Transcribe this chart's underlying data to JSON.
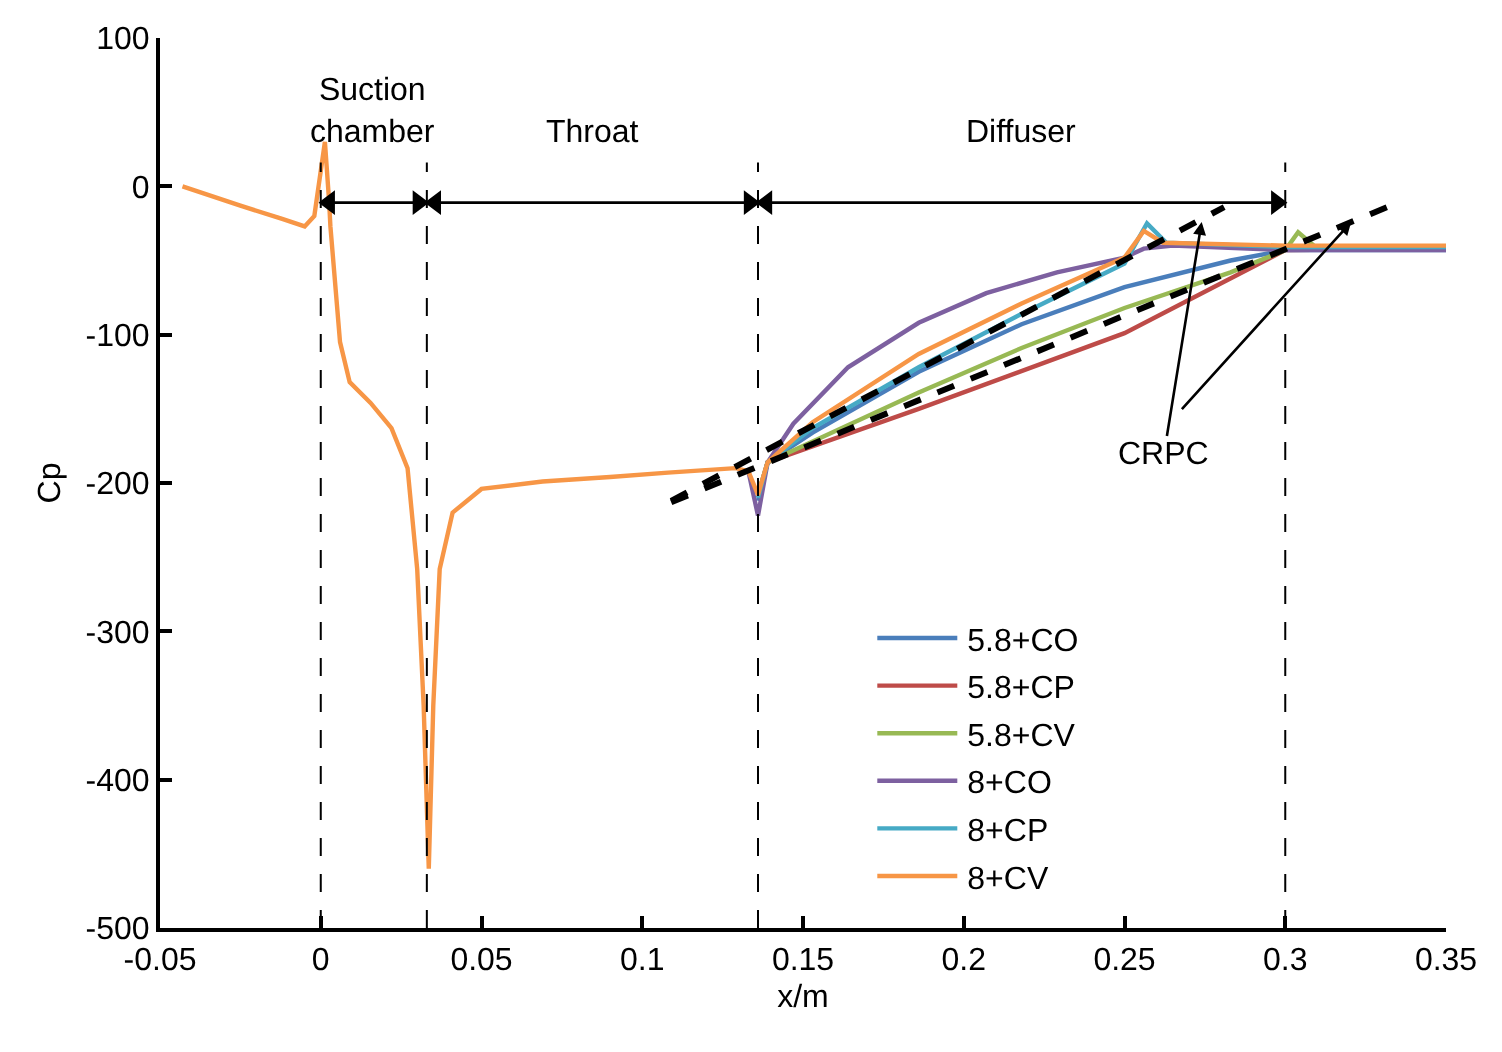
{
  "chart_data": {
    "type": "line",
    "xlabel": "x/m",
    "ylabel": "Cp",
    "xlim": [
      -0.05,
      0.35
    ],
    "xticks": [
      -0.05,
      0,
      0.05,
      0.1,
      0.15,
      0.2,
      0.25,
      0.3,
      0.35
    ],
    "ylim": [
      -500,
      100
    ],
    "yticks": [
      -500,
      -400,
      -300,
      -200,
      -100,
      0,
      100
    ],
    "legend": "bottom right",
    "marker": "none",
    "series": [
      {
        "name": "5.8+CO",
        "color": "#4a7ebb",
        "x": [
          0.136,
          0.139,
          0.153,
          0.186,
          0.218,
          0.25,
          0.283,
          0.3,
          0.35
        ],
        "values": [
          -212,
          -186,
          -166,
          -125,
          -93,
          -68,
          -50,
          -43,
          -43
        ]
      },
      {
        "name": "5.8+CP",
        "color": "#be4b48",
        "x": [
          0.136,
          0.139,
          0.186,
          0.25,
          0.3,
          0.35
        ],
        "values": [
          -208,
          -186,
          -150,
          -99,
          -43,
          -42
        ]
      },
      {
        "name": "5.8+CV",
        "color": "#98b954",
        "x": [
          0.136,
          0.139,
          0.186,
          0.218,
          0.25,
          0.283,
          0.3,
          0.304,
          0.31,
          0.35
        ],
        "values": [
          -208,
          -186,
          -139,
          -109,
          -82,
          -58,
          -43,
          -31,
          -42,
          -42
        ]
      },
      {
        "name": "8+CO",
        "color": "#7d60a0",
        "x": [
          0.133,
          0.136,
          0.139,
          0.147,
          0.164,
          0.186,
          0.207,
          0.229,
          0.25,
          0.256,
          0.265,
          0.3,
          0.35
        ],
        "values": [
          -192,
          -222,
          -186,
          -160,
          -122,
          -92,
          -72,
          -58,
          -48,
          -42,
          -40,
          -43,
          -43
        ]
      },
      {
        "name": "8+CP",
        "color": "#46aac5",
        "x": [
          0.136,
          0.139,
          0.153,
          0.186,
          0.218,
          0.25,
          0.257,
          0.263,
          0.3,
          0.35
        ],
        "values": [
          -210,
          -186,
          -163,
          -122,
          -86,
          -52,
          -25,
          -38,
          -41,
          -41
        ]
      },
      {
        "name": "8+CV",
        "color": "#f79646",
        "x": [
          -0.043,
          -0.025,
          -0.012,
          -0.005,
          -0.002,
          0.0013,
          0.0026,
          0.003,
          0.006,
          0.009,
          0.0155,
          0.022,
          0.027,
          0.03,
          0.032,
          0.0336,
          0.035,
          0.037,
          0.041,
          0.05,
          0.069,
          0.09,
          0.108,
          0.129,
          0.133,
          0.136,
          0.139,
          0.153,
          0.186,
          0.218,
          0.25,
          0.256,
          0.262,
          0.3,
          0.35
        ],
        "values": [
          0,
          -13,
          -22,
          -27,
          -20,
          30,
          -10,
          -27,
          -105,
          -132,
          -146,
          -163,
          -190,
          -258,
          -350,
          -460,
          -350,
          -258,
          -220,
          -204,
          -199,
          -196,
          -193,
          -190,
          -192,
          -208,
          -186,
          -159,
          -113,
          -79,
          -48,
          -30,
          -38,
          -40,
          -40
        ]
      },
      {
        "type": "line",
        "color": "#000000",
        "line_style": "dashed",
        "x": [
          0.109,
          0.281
        ],
        "values": [
          -212,
          -14
        ]
      },
      {
        "type": "line",
        "color": "#000000",
        "line_style": "dashed",
        "x": [
          0.109,
          0.334
        ],
        "values": [
          -213,
          -12
        ]
      }
    ],
    "ref_lines": [
      {
        "axis": "x",
        "value": 0,
        "color": "#000000",
        "line_style": "dashed"
      },
      {
        "axis": "x",
        "value": 0.033,
        "color": "#000000",
        "line_style": "dashed"
      },
      {
        "axis": "x",
        "value": 0.136,
        "color": "#000000",
        "line_style": "dashed"
      },
      {
        "axis": "x",
        "value": 0.3,
        "color": "#000000",
        "line_style": "dashed"
      }
    ],
    "annotations": [
      "Suction\nchamber",
      "Throat",
      "Diffuser",
      {
        "text": "CRPC",
        "x": 0.274,
        "y": -24
      }
    ]
  }
}
